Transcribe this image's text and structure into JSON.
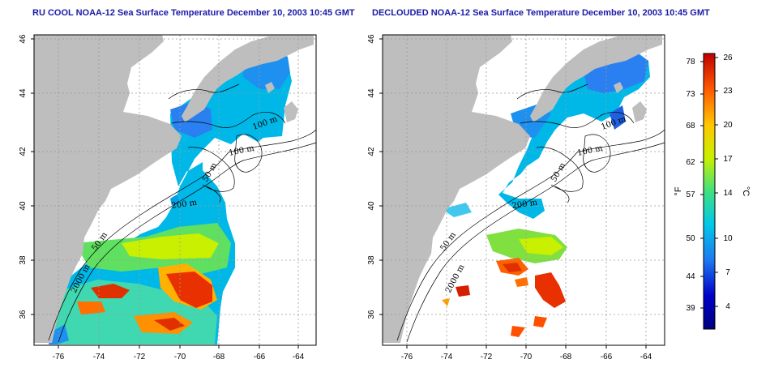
{
  "maps": [
    {
      "id": "left",
      "title": "RU COOL NOAA-12 Sea Surface Temperature December 10, 2003 10:45 GMT",
      "x_ticks": [
        "-76",
        "-74",
        "-72",
        "-70",
        "-68",
        "-66",
        "-64"
      ],
      "y_ticks": [
        "36",
        "38",
        "40",
        "42",
        "44",
        "46"
      ],
      "contour_labels": [
        "100 m",
        "100 m",
        "50 m",
        "200 m",
        "50 m",
        "2000 m"
      ]
    },
    {
      "id": "right",
      "title": "DECLOUDED NOAA-12 Sea Surface Temperature December 10, 2003 10:45 GMT",
      "x_ticks": [
        "-76",
        "-74",
        "-72",
        "-70",
        "-68",
        "-66",
        "-64"
      ],
      "y_ticks": [
        "36",
        "38",
        "40",
        "42",
        "44",
        "46"
      ],
      "contour_labels": [
        "100 m",
        "100 m",
        "50 m",
        "200 m",
        "50 m",
        "2000 m"
      ]
    }
  ],
  "colorbar": {
    "fahrenheit_unit": "°F",
    "celsius_unit": "°C",
    "fahrenheit_ticks": [
      "78",
      "73",
      "68",
      "62",
      "57",
      "50",
      "44",
      "39"
    ],
    "celsius_ticks": [
      "26",
      "23",
      "20",
      "17",
      "14",
      "10",
      "7",
      "4"
    ],
    "colors": [
      "#d40000",
      "#ff5a00",
      "#ffc800",
      "#c8f000",
      "#40e080",
      "#00c8e8",
      "#1e78f0",
      "#0000c8",
      "#000080"
    ]
  },
  "colors": {
    "land": "#bebebe",
    "title": "#1a1aa8",
    "grid": "#9a9a9a"
  }
}
